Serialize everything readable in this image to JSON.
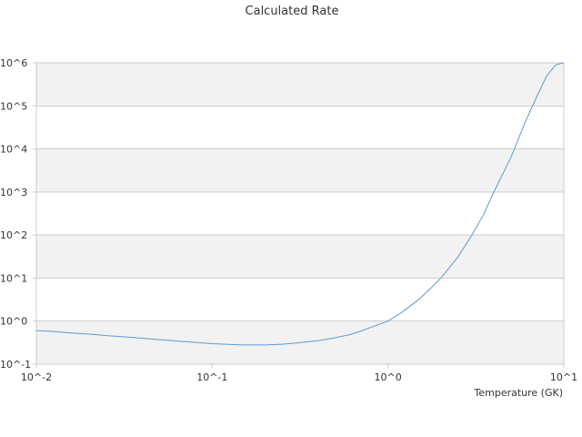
{
  "chart_data": {
    "type": "line",
    "title": "Calculated Rate",
    "xlabel": "Temperature (GK)",
    "ylabel": "",
    "x_scale": "log",
    "y_scale": "log",
    "xlim": [
      0.01,
      10
    ],
    "ylim": [
      0.1,
      1000000
    ],
    "x_tick_labels": [
      "10^-2",
      "10^-1",
      "10^0",
      "10^1"
    ],
    "y_tick_labels": [
      "10^-1",
      "10^0",
      "10^1",
      "10^2",
      "10^3",
      "10^4",
      "10^5",
      "10^6"
    ],
    "grid": "alternating horizontal bands",
    "legend": "none",
    "colors": {
      "line": "#5b9bd5",
      "band": "#f2f2f2",
      "axis": "#cccccc"
    },
    "series": [
      {
        "x": [
          0.01,
          0.012,
          0.015,
          0.02,
          0.025,
          0.03,
          0.04,
          0.05,
          0.06,
          0.08,
          0.1,
          0.12,
          0.15,
          0.2,
          0.25,
          0.3,
          0.4,
          0.5,
          0.6,
          0.7,
          0.8,
          1.0,
          1.2,
          1.5,
          1.8,
          2.0,
          2.5,
          3.0,
          3.5,
          4.0,
          5.0,
          6.0,
          7.0,
          8.0,
          9.0,
          10.0
        ],
        "y": [
          0.6,
          0.58,
          0.54,
          0.5,
          0.46,
          0.44,
          0.4,
          0.37,
          0.35,
          0.32,
          0.3,
          0.29,
          0.28,
          0.28,
          0.29,
          0.31,
          0.35,
          0.41,
          0.48,
          0.58,
          0.72,
          1.0,
          1.6,
          3.2,
          6.5,
          10,
          31,
          100,
          300,
          1000,
          6300,
          40000,
          160000,
          500000,
          900000,
          1000000
        ]
      }
    ]
  }
}
